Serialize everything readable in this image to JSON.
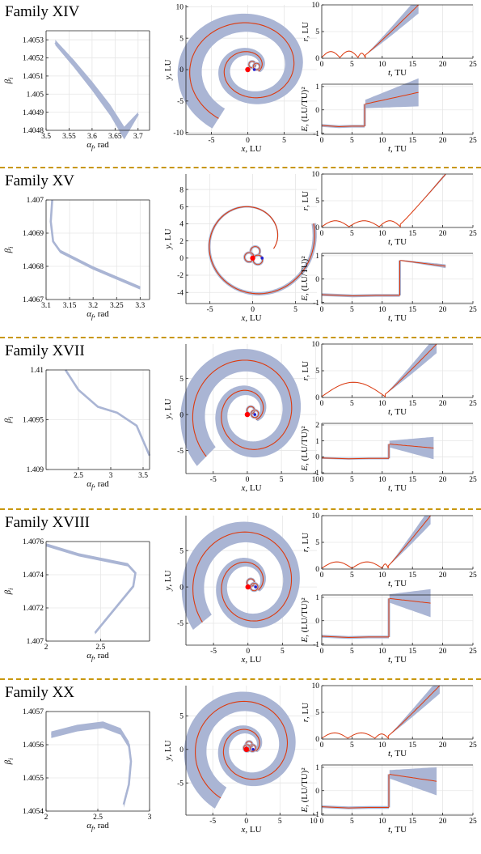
{
  "colors": {
    "band": "#aab5d4",
    "nominal": "#dd3a0e",
    "separator": "#c8970e",
    "grid": "#e6e6e6",
    "origin": "#ff0000",
    "marker": "#1f1fd0"
  },
  "families": [
    {
      "title": "Family XIV",
      "beta": {
        "xlabel": "α_f, rad",
        "ylabel": "β_i",
        "xlim": [
          3.5,
          3.725
        ],
        "ylim": [
          1.4048,
          1.40535
        ],
        "xticks": [
          3.5,
          3.55,
          3.6,
          3.65,
          3.7
        ],
        "xticklabels": [
          "3.5",
          "3.55",
          "3.6",
          "3.65",
          "3.7"
        ],
        "yticks": [
          1.4048,
          1.4049,
          1.405,
          1.4051,
          1.4052,
          1.4053
        ],
        "yticklabels": [
          "1.4048",
          "1.4049",
          "1.405",
          "1.4051",
          "1.4052",
          "1.4053"
        ]
      },
      "traj": {
        "xlabel": "x, LU",
        "ylabel": "y, LU",
        "xlim": [
          -8.5,
          9.5
        ],
        "ylim": [
          -10.3,
          10.3
        ],
        "xticks": [
          -5,
          0,
          5
        ],
        "yticks": [
          -10,
          -5,
          0,
          5,
          10
        ],
        "yticklabels": [
          "-10",
          "-5",
          "0",
          "5",
          "10"
        ]
      },
      "r": {
        "xlabel": "t, TU",
        "ylabel": "r, LU",
        "xlim": [
          0,
          25
        ],
        "ylim": [
          0,
          10
        ],
        "xticks": [
          0,
          5,
          10,
          15,
          20,
          25
        ],
        "yticks": [
          0,
          5,
          10
        ]
      },
      "E": {
        "xlabel": "t, TU",
        "ylabel": "E, (LU/TU)²",
        "xlim": [
          0,
          25
        ],
        "ylim": [
          -1.05,
          1.1
        ],
        "xticks": [
          0,
          5,
          10,
          15,
          20,
          25
        ],
        "yticks": [
          -1,
          0,
          1
        ]
      }
    },
    {
      "title": "Family XV",
      "beta": {
        "xlabel": "α_f, rad",
        "ylabel": "β_i",
        "xlim": [
          3.1,
          3.32
        ],
        "ylim": [
          1.4067,
          1.407
        ],
        "xticks": [
          3.1,
          3.15,
          3.2,
          3.25,
          3.3
        ],
        "xticklabels": [
          "3.1",
          "3.15",
          "3.2",
          "3.25",
          "3.3"
        ],
        "yticks": [
          1.4067,
          1.4068,
          1.4069,
          1.407
        ],
        "yticklabels": [
          "1.4067",
          "1.4068",
          "1.4069",
          "1.407"
        ]
      },
      "traj": {
        "xlabel": "x, LU",
        "ylabel": "y, LU",
        "xlim": [
          -7.8,
          7.5
        ],
        "ylim": [
          -5.3,
          9.8
        ],
        "xticks": [
          -5,
          0,
          5
        ],
        "yticks": [
          -4,
          -2,
          0,
          2,
          4,
          6,
          8
        ],
        "yticklabels": [
          "-4",
          "-2",
          "0",
          "2",
          "4",
          "6",
          "8"
        ]
      },
      "r": {
        "xlabel": "t, TU",
        "ylabel": "r, LU",
        "xlim": [
          0,
          25
        ],
        "ylim": [
          0,
          10
        ],
        "xticks": [
          0,
          5,
          10,
          15,
          20,
          25
        ],
        "yticks": [
          0,
          5,
          10
        ]
      },
      "E": {
        "xlabel": "t, TU",
        "ylabel": "E, (LU/TU)²",
        "xlim": [
          0,
          25
        ],
        "ylim": [
          -1.05,
          1.1
        ],
        "xticks": [
          0,
          5,
          10,
          15,
          20,
          25
        ],
        "yticks": [
          -1,
          0,
          1
        ]
      }
    },
    {
      "title": "Family XVII",
      "beta": {
        "xlabel": "α_f, rad",
        "ylabel": "β_i",
        "xlim": [
          2.0,
          3.6
        ],
        "ylim": [
          1.409,
          1.41
        ],
        "xticks": [
          2.5,
          3,
          3.5
        ],
        "xticklabels": [
          "2.5",
          "3",
          "3.5"
        ],
        "yticks": [
          1.409,
          1.4095,
          1.41
        ],
        "yticklabels": [
          "1.409",
          "1.4095",
          "1.41"
        ]
      },
      "traj": {
        "xlabel": "x, LU",
        "ylabel": "y, LU",
        "xlim": [
          -9.0,
          10.2
        ],
        "ylim": [
          -8.2,
          9.8
        ],
        "xticks": [
          -5,
          0,
          5,
          10
        ],
        "yticks": [
          -5,
          0,
          5
        ],
        "yticklabels": [
          "-5",
          "0",
          "5"
        ]
      },
      "r": {
        "xlabel": "t, TU",
        "ylabel": "r, LU",
        "xlim": [
          0,
          25
        ],
        "ylim": [
          0,
          10
        ],
        "xticks": [
          0,
          5,
          10,
          15,
          20,
          25
        ],
        "yticks": [
          0,
          5,
          10
        ]
      },
      "E": {
        "xlabel": "t, TU",
        "ylabel": "E, (LU/TU)²",
        "xlim": [
          0,
          25
        ],
        "ylim": [
          -1.05,
          2.1
        ],
        "xticks": [
          0,
          5,
          10,
          15,
          20,
          25
        ],
        "yticks": [
          -1,
          0,
          1,
          2
        ]
      }
    },
    {
      "title": "Family XVIII",
      "beta": {
        "xlabel": "α_f, rad",
        "ylabel": "β_i",
        "xlim": [
          2.0,
          2.95
        ],
        "ylim": [
          1.407,
          1.4076
        ],
        "xticks": [
          2,
          2.5
        ],
        "xticklabels": [
          "2",
          "2.5"
        ],
        "yticks": [
          1.407,
          1.4072,
          1.4074,
          1.4076
        ],
        "yticklabels": [
          "1.407",
          "1.4072",
          "1.4074",
          "1.4076"
        ]
      },
      "traj": {
        "xlabel": "x, LU",
        "ylabel": "y, LU",
        "xlim": [
          -9.0,
          10.0
        ],
        "ylim": [
          -8.0,
          9.8
        ],
        "xticks": [
          -5,
          0,
          5
        ],
        "yticks": [
          -5,
          0,
          5
        ],
        "yticklabels": [
          "-5",
          "0",
          "5"
        ]
      },
      "r": {
        "xlabel": "t, TU",
        "ylabel": "r, LU",
        "xlim": [
          0,
          25
        ],
        "ylim": [
          0,
          10
        ],
        "xticks": [
          0,
          5,
          10,
          15,
          20,
          25
        ],
        "yticks": [
          0,
          5,
          10
        ]
      },
      "E": {
        "xlabel": "t, TU",
        "ylabel": "E, (LU/TU)²",
        "xlim": [
          0,
          25
        ],
        "ylim": [
          -1.05,
          1.1
        ],
        "xticks": [
          0,
          5,
          10,
          15,
          20,
          25
        ],
        "yticks": [
          -1,
          0,
          1
        ]
      }
    },
    {
      "title": "Family XX",
      "beta": {
        "xlabel": "α_f, rad",
        "ylabel": "β_i",
        "xlim": [
          2.0,
          3.0
        ],
        "ylim": [
          1.4054,
          1.4057
        ],
        "xticks": [
          2,
          2.5,
          3
        ],
        "xticklabels": [
          "2",
          "2.5",
          "3"
        ],
        "yticks": [
          1.4054,
          1.4055,
          1.4056,
          1.4057
        ],
        "yticklabels": [
          "1.4054",
          "1.4055",
          "1.4056",
          "1.4057"
        ]
      },
      "traj": {
        "xlabel": "x, LU",
        "ylabel": "y, LU",
        "xlim": [
          -9.0,
          10.5
        ],
        "ylim": [
          -9.8,
          9.5
        ],
        "xticks": [
          -5,
          0,
          5,
          10
        ],
        "yticks": [
          -5,
          0,
          5
        ],
        "yticklabels": [
          "-5",
          "0",
          "5"
        ]
      },
      "r": {
        "xlabel": "t, TU",
        "ylabel": "r, LU",
        "xlim": [
          0,
          25
        ],
        "ylim": [
          0,
          10
        ],
        "xticks": [
          0,
          5,
          10,
          15,
          20,
          25
        ],
        "yticks": [
          0,
          5,
          10
        ]
      },
      "E": {
        "xlabel": "t, TU",
        "ylabel": "E, (LU/TU)²",
        "xlim": [
          0,
          25
        ],
        "ylim": [
          -1.05,
          1.1
        ],
        "xticks": [
          0,
          5,
          10,
          15,
          20,
          25
        ],
        "yticks": [
          -1,
          0,
          1
        ]
      }
    }
  ],
  "chart_data": [
    {
      "type": "line",
      "family": "XIV",
      "panel": "beta_vs_alpha",
      "xlabel": "α_f, rad",
      "ylabel": "β_i",
      "xlim": [
        3.5,
        3.725
      ],
      "ylim": [
        1.4048,
        1.40535
      ],
      "grid": true,
      "series": [
        {
          "x": [
            3.52,
            3.56,
            3.6,
            3.64,
            3.67,
            3.7
          ],
          "y": [
            1.40528,
            1.40518,
            1.40507,
            1.40494,
            1.40481,
            1.40491
          ]
        }
      ]
    },
    {
      "type": "line",
      "family": "XIV",
      "panel": "r_vs_t",
      "xlabel": "t, TU",
      "ylabel": "r, LU",
      "xlim": [
        0,
        25
      ],
      "ylim": [
        0,
        10
      ],
      "grid": true,
      "series": [
        {
          "x": [
            0,
            1.5,
            3,
            4.5,
            6,
            7,
            8,
            10,
            12,
            14,
            16
          ],
          "y": [
            0.3,
            1.2,
            0.1,
            1.3,
            0.2,
            1.0,
            2.0,
            4.5,
            6.8,
            8.8,
            10
          ]
        }
      ]
    },
    {
      "type": "line",
      "family": "XIV",
      "panel": "E_vs_t",
      "xlabel": "t, TU",
      "ylabel": "E, (LU/TU)²",
      "xlim": [
        0,
        25
      ],
      "ylim": [
        -1.05,
        1.1
      ],
      "grid": true,
      "series": [
        {
          "x": [
            0,
            3,
            7,
            7.2,
            10,
            13,
            16
          ],
          "y": [
            -0.7,
            -0.72,
            -0.7,
            0.25,
            0.35,
            0.5,
            0.75
          ]
        }
      ]
    },
    {
      "type": "line",
      "family": "XV",
      "panel": "beta_vs_alpha",
      "xlabel": "α_f, rad",
      "ylabel": "β_i",
      "xlim": [
        3.1,
        3.32
      ],
      "ylim": [
        1.4067,
        1.407
      ],
      "grid": true,
      "series": [
        {
          "x": [
            3.115,
            3.11,
            3.12,
            3.2,
            3.3
          ],
          "y": [
            1.407,
            1.40692,
            1.40685,
            1.4068,
            1.40674
          ]
        }
      ]
    },
    {
      "type": "line",
      "family": "XV",
      "panel": "r_vs_t",
      "xlabel": "t, TU",
      "ylabel": "r, LU",
      "xlim": [
        0,
        25
      ],
      "ylim": [
        0,
        10
      ],
      "grid": true,
      "series": [
        {
          "x": [
            0,
            2,
            4.5,
            7,
            9.5,
            12,
            13,
            15,
            18,
            20.5
          ],
          "y": [
            0.3,
            1.3,
            0.2,
            1.3,
            0.2,
            1.3,
            1.0,
            3.5,
            7,
            10
          ]
        }
      ]
    },
    {
      "type": "line",
      "family": "XV",
      "panel": "E_vs_t",
      "xlabel": "t, TU",
      "ylabel": "E, (LU/TU)²",
      "xlim": [
        0,
        25
      ],
      "ylim": [
        -1.05,
        1.1
      ],
      "grid": true,
      "series": [
        {
          "x": [
            0,
            6,
            12.8,
            13,
            16,
            20.5
          ],
          "y": [
            -0.65,
            -0.7,
            -0.7,
            0.8,
            0.7,
            0.55
          ]
        }
      ]
    },
    {
      "type": "line",
      "family": "XVII",
      "panel": "beta_vs_alpha",
      "xlabel": "α_f, rad",
      "ylabel": "β_i",
      "xlim": [
        2.0,
        3.6
      ],
      "ylim": [
        1.409,
        1.41
      ],
      "grid": true,
      "series": [
        {
          "x": [
            2.3,
            2.5,
            2.8,
            3.1,
            3.4,
            3.6
          ],
          "y": [
            1.41,
            1.4098,
            1.40963,
            1.40957,
            1.40945,
            1.40915
          ]
        }
      ]
    },
    {
      "type": "line",
      "family": "XVII",
      "panel": "r_vs_t",
      "xlabel": "t, TU",
      "ylabel": "r, LU",
      "xlim": [
        0,
        25
      ],
      "ylim": [
        0,
        10
      ],
      "grid": true,
      "series": [
        {
          "x": [
            0,
            3,
            6,
            9,
            10.5,
            13,
            16,
            19
          ],
          "y": [
            0.2,
            2.2,
            2.9,
            2.0,
            0.7,
            4,
            7.2,
            10
          ]
        }
      ]
    },
    {
      "type": "line",
      "family": "XVII",
      "panel": "E_vs_t",
      "xlabel": "t, TU",
      "ylabel": "E, (LU/TU)²",
      "xlim": [
        0,
        25
      ],
      "ylim": [
        -1.05,
        2.1
      ],
      "grid": true,
      "series": [
        {
          "x": [
            0,
            5,
            11,
            11.3,
            14,
            18
          ],
          "y": [
            -0.1,
            -0.1,
            -0.08,
            0.8,
            0.75,
            0.55
          ]
        }
      ]
    },
    {
      "type": "line",
      "family": "XVIII",
      "panel": "beta_vs_alpha",
      "xlabel": "α_f, rad",
      "ylabel": "β_i",
      "xlim": [
        2.0,
        2.95
      ],
      "ylim": [
        1.407,
        1.4076
      ],
      "grid": true,
      "series": [
        {
          "x": [
            2.0,
            2.3,
            2.6,
            2.82,
            2.8,
            2.65,
            2.45
          ],
          "y": [
            1.40758,
            1.40752,
            1.40748,
            1.40742,
            1.40734,
            1.40722,
            1.40706
          ]
        }
      ]
    },
    {
      "type": "line",
      "family": "XVIII",
      "panel": "r_vs_t",
      "xlabel": "t, TU",
      "ylabel": "r, LU",
      "xlim": [
        0,
        25
      ],
      "ylim": [
        0,
        10
      ],
      "grid": true,
      "series": [
        {
          "x": [
            0,
            2.5,
            5,
            7.5,
            10,
            11,
            14,
            18
          ],
          "y": [
            0.3,
            1.4,
            0.2,
            1.4,
            0.2,
            1.0,
            5,
            10
          ]
        }
      ]
    },
    {
      "type": "line",
      "family": "XVIII",
      "panel": "E_vs_t",
      "xlabel": "t, TU",
      "ylabel": "E, (LU/TU)²",
      "xlim": [
        0,
        25
      ],
      "ylim": [
        -1.05,
        1.1
      ],
      "grid": true,
      "series": [
        {
          "x": [
            0,
            5,
            11,
            11.3,
            14,
            18
          ],
          "y": [
            -0.65,
            -0.7,
            -0.7,
            0.95,
            0.9,
            0.75
          ]
        }
      ]
    },
    {
      "type": "line",
      "family": "XX",
      "panel": "beta_vs_alpha",
      "xlabel": "α_f, rad",
      "ylabel": "β_i",
      "xlim": [
        2.0,
        3.0
      ],
      "ylim": [
        1.4054,
        1.4057
      ],
      "grid": true,
      "series": [
        {
          "x": [
            2.05,
            2.4,
            2.7,
            2.82,
            2.8,
            2.75
          ],
          "y": [
            1.40563,
            1.40566,
            1.40565,
            1.40558,
            1.40548,
            1.40542
          ]
        }
      ]
    },
    {
      "type": "line",
      "family": "XX",
      "panel": "r_vs_t",
      "xlabel": "t, TU",
      "ylabel": "r, LU",
      "xlim": [
        0,
        25
      ],
      "ylim": [
        0,
        10
      ],
      "grid": true,
      "series": [
        {
          "x": [
            0,
            2,
            4.3,
            6.5,
            8.8,
            11,
            14,
            17,
            19.5
          ],
          "y": [
            0.3,
            1.2,
            0.2,
            1.2,
            0.2,
            1.0,
            4.5,
            8,
            10
          ]
        }
      ]
    },
    {
      "type": "line",
      "family": "XX",
      "panel": "E_vs_t",
      "xlabel": "t, TU",
      "ylabel": "E, (LU/TU)²",
      "xlim": [
        0,
        25
      ],
      "ylim": [
        -1.05,
        1.1
      ],
      "grid": true,
      "series": [
        {
          "x": [
            0,
            5,
            11,
            11.3,
            15,
            19
          ],
          "y": [
            -0.7,
            -0.72,
            -0.72,
            0.7,
            0.6,
            0.4
          ]
        }
      ]
    }
  ]
}
